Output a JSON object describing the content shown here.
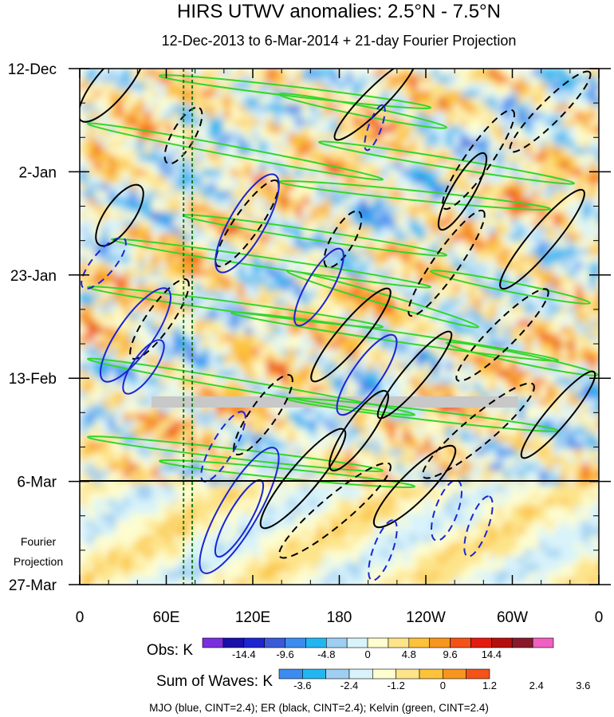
{
  "chart_data": {
    "type": "heatmap",
    "title": "HIRS UTWV anomalies: 2.5°N - 7.5°N",
    "subtitle": "12-Dec-2013 to 6-Mar-2014 + 21-day Fourier Projection",
    "x_ticks": [
      "0",
      "60E",
      "120E",
      "180",
      "120W",
      "60W",
      "0"
    ],
    "y_ticks": [
      "12-Dec",
      "2-Jan",
      "23-Jan",
      "13-Feb",
      "6-Mar",
      "27-Mar"
    ],
    "projection_label_line1": "Fourier",
    "projection_label_line2": "Projection",
    "xlim_deg_east": [
      0,
      360
    ],
    "marker_longitudes_deg_east": [
      72,
      78
    ],
    "obs_colorbar": {
      "label": "Obs: K",
      "tick_labels": [
        "-14.4",
        "-9.6",
        "-4.8",
        "0",
        "4.8",
        "9.6",
        "14.4"
      ],
      "colors": [
        "#7b2ee0",
        "#1a0fa8",
        "#1c25d0",
        "#3a5ad8",
        "#3c8cf0",
        "#22b6f0",
        "#9ecff2",
        "#d8f3fa",
        "#fdfdd0",
        "#fde48a",
        "#fcc23a",
        "#f7961e",
        "#f45218",
        "#e31a10",
        "#b40f0f",
        "#8a1a2a",
        "#f060c0"
      ]
    },
    "waves_colorbar": {
      "label": "Sum of Waves: K",
      "tick_labels": [
        "-3.6",
        "-2.4",
        "-1.2",
        "0",
        "1.2",
        "2.4",
        "3.6"
      ],
      "colors": [
        "#3c8cf0",
        "#22b6f0",
        "#9ecff2",
        "#d8f3fa",
        "#fdfdd0",
        "#fde48a",
        "#fcc23a",
        "#f7961e",
        "#f45218"
      ]
    },
    "contour_legend": "MJO (blue, CINT=2.4); ER (black, CINT=2.4); Kelvin (green, CINT=2.4)",
    "contour_colors": {
      "mjo": "#1c25d0",
      "er": "#000000",
      "kelvin": "#34d62c"
    }
  }
}
